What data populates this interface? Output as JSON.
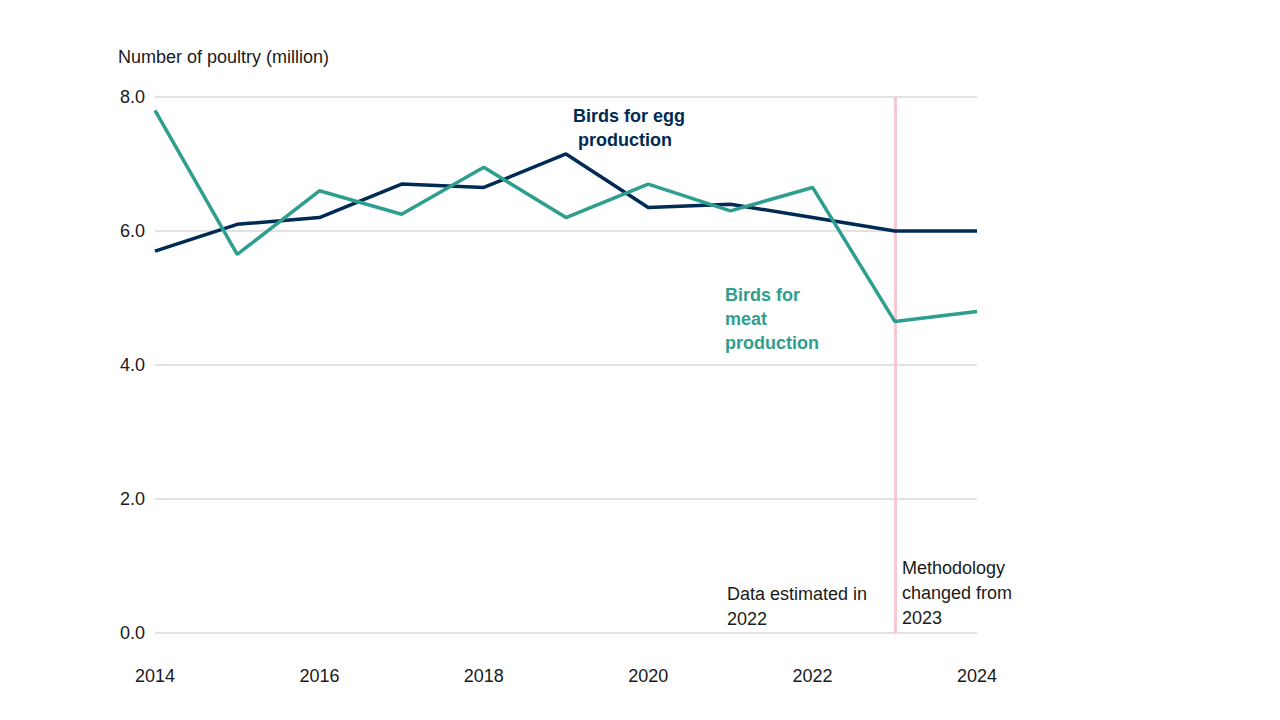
{
  "chart_data": {
    "type": "line",
    "y_label": "Number of poultry (million)",
    "x": [
      2014,
      2015,
      2016,
      2017,
      2018,
      2019,
      2020,
      2021,
      2022,
      2023,
      2024
    ],
    "series": [
      {
        "name": "Birds for egg production",
        "color": "#002b54",
        "values": [
          5.7,
          6.1,
          6.2,
          6.7,
          6.65,
          7.15,
          6.35,
          6.4,
          6.2,
          6.0,
          6.0
        ]
      },
      {
        "name": "Birds for meat production",
        "color": "#2e9e8e",
        "values": [
          7.8,
          5.65,
          6.6,
          6.25,
          6.95,
          6.2,
          6.7,
          6.3,
          6.65,
          4.65,
          4.8
        ]
      }
    ],
    "xlim": [
      2014,
      2024
    ],
    "xticks": [
      2014,
      2016,
      2018,
      2020,
      2022,
      2024
    ],
    "ylim": [
      0,
      8
    ],
    "yticks": [
      {
        "value": 0,
        "label": "0.0"
      },
      {
        "value": 2,
        "label": "2.0"
      },
      {
        "value": 4,
        "label": "4.0"
      },
      {
        "value": 6,
        "label": "6.0"
      },
      {
        "value": 8,
        "label": "8.0"
      }
    ],
    "grid": true,
    "reference_line": {
      "x": 2023,
      "color": "#f8c8d2"
    },
    "annotations": [
      "Data estimated in 2022",
      "Methodology changed from 2023"
    ]
  }
}
